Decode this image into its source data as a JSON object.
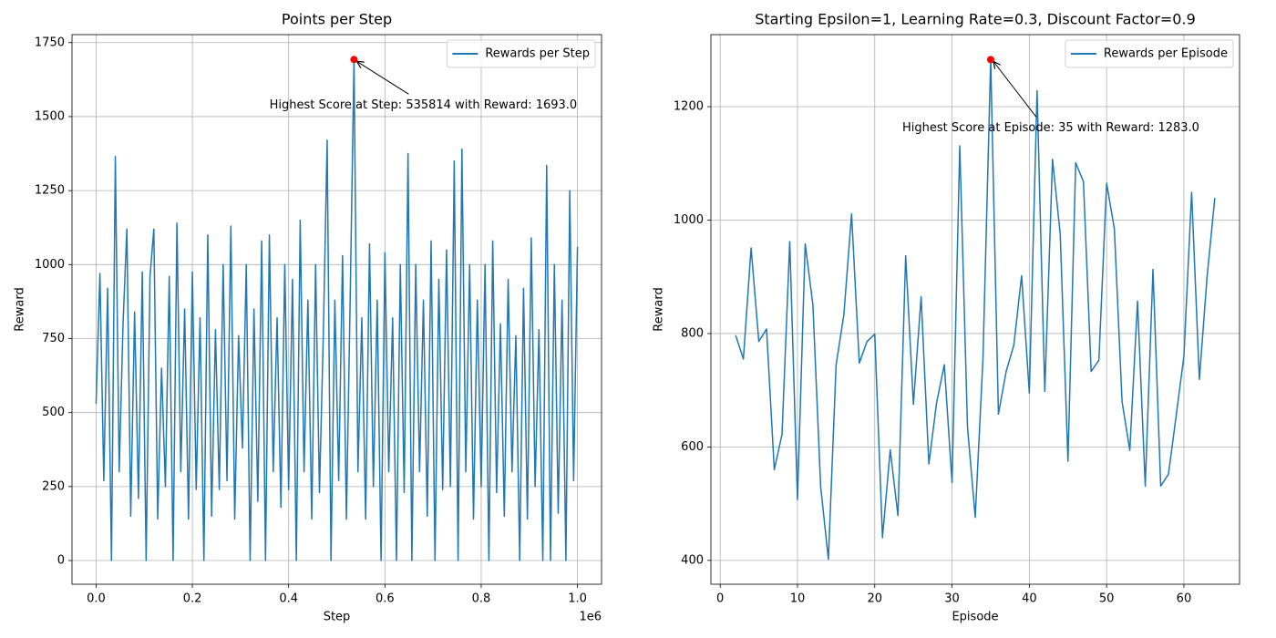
{
  "chart_data": [
    {
      "type": "line",
      "title": "Points per Step",
      "xlabel": "Step",
      "ylabel": "Reward",
      "x_offset_label": "1e6",
      "x": [
        0,
        8000,
        16000,
        24000,
        32000,
        40000,
        48000,
        56000,
        64000,
        72000,
        80000,
        88000,
        96000,
        104000,
        112000,
        120000,
        128000,
        136000,
        144000,
        152000,
        160000,
        168000,
        176000,
        184000,
        192000,
        200000,
        208000,
        216000,
        224000,
        232000,
        240000,
        248000,
        256000,
        264000,
        272000,
        280000,
        288000,
        296000,
        304000,
        312000,
        320000,
        328000,
        336000,
        344000,
        352000,
        360000,
        368000,
        376000,
        384000,
        392000,
        400000,
        408000,
        416000,
        424000,
        432000,
        440000,
        448000,
        456000,
        464000,
        472000,
        480000,
        488000,
        496000,
        504000,
        512000,
        520000,
        528000,
        535814,
        544000,
        552000,
        560000,
        568000,
        576000,
        584000,
        592000,
        600000,
        608000,
        616000,
        624000,
        632000,
        640000,
        648000,
        656000,
        664000,
        672000,
        680000,
        688000,
        696000,
        704000,
        712000,
        720000,
        728000,
        736000,
        744000,
        752000,
        760000,
        768000,
        776000,
        784000,
        792000,
        800000,
        808000,
        816000,
        824000,
        832000,
        840000,
        848000,
        856000,
        864000,
        872000,
        880000,
        888000,
        896000,
        904000,
        912000,
        920000,
        928000,
        936000,
        944000,
        952000,
        960000,
        968000,
        976000,
        984000,
        992000,
        1000000
      ],
      "series": [
        {
          "name": "Rewards per Step",
          "color": "#1f77b4",
          "values": [
            530,
            970,
            270,
            920,
            0,
            1365,
            300,
            800,
            1120,
            150,
            840,
            210,
            975,
            0,
            960,
            1120,
            140,
            650,
            250,
            960,
            0,
            1140,
            300,
            850,
            140,
            975,
            240,
            820,
            0,
            1100,
            150,
            780,
            240,
            1000,
            270,
            1130,
            140,
            760,
            380,
            1000,
            0,
            850,
            200,
            1080,
            0,
            1100,
            300,
            820,
            180,
            1000,
            240,
            950,
            0,
            1150,
            300,
            880,
            140,
            1000,
            230,
            760,
            1420,
            0,
            880,
            270,
            1030,
            140,
            900,
            1693,
            300,
            820,
            140,
            1070,
            250,
            880,
            0,
            1040,
            300,
            820,
            0,
            1000,
            230,
            1375,
            0,
            1000,
            300,
            880,
            150,
            1080,
            0,
            950,
            240,
            1050,
            250,
            1350,
            0,
            1390,
            300,
            1000,
            140,
            880,
            250,
            1000,
            0,
            1080,
            230,
            800,
            150,
            950,
            300,
            760,
            0,
            920,
            140,
            1090,
            250,
            780,
            0,
            1335,
            0,
            1000,
            160,
            880,
            0,
            1250,
            270,
            1060
          ]
        }
      ],
      "xlim": [
        -50000,
        1050000
      ],
      "ylim": [
        -80,
        1777
      ],
      "xticks": [
        {
          "value": 0,
          "label": "0.0"
        },
        {
          "value": 200000,
          "label": "0.2"
        },
        {
          "value": 400000,
          "label": "0.4"
        },
        {
          "value": 600000,
          "label": "0.6"
        },
        {
          "value": 800000,
          "label": "0.8"
        },
        {
          "value": 1000000,
          "label": "1.0"
        }
      ],
      "yticks": [
        0,
        250,
        500,
        750,
        1000,
        1250,
        1500,
        1750
      ],
      "grid": true,
      "legend": "upper right",
      "annotation": {
        "text": "Highest Score at Step: 535814 with Reward: 1693.0",
        "x": 535814,
        "y": 1693,
        "color": "#ff0000"
      }
    },
    {
      "type": "line",
      "title": "Starting Epsilon=1, Learning Rate=0.3, Discount Factor=0.9",
      "xlabel": "Episode",
      "ylabel": "Reward",
      "x": [
        2,
        3,
        4,
        5,
        6,
        7,
        8,
        9,
        10,
        11,
        12,
        13,
        14,
        15,
        16,
        17,
        18,
        19,
        20,
        21,
        22,
        23,
        24,
        25,
        26,
        27,
        28,
        29,
        30,
        31,
        32,
        33,
        34,
        35,
        36,
        37,
        38,
        39,
        40,
        41,
        42,
        43,
        44,
        45,
        46,
        47,
        48,
        49,
        50,
        51,
        52,
        53,
        54,
        55,
        56,
        57,
        58,
        59,
        60,
        61,
        62,
        63,
        64
      ],
      "series": [
        {
          "name": "Rewards per Episode",
          "color": "#1f77b4",
          "values": [
            797,
            755,
            951,
            786,
            808,
            560,
            622,
            962,
            507,
            958,
            850,
            530,
            402,
            745,
            833,
            1011,
            748,
            786,
            799,
            440,
            595,
            479,
            937,
            675,
            865,
            570,
            678,
            745,
            537,
            1131,
            635,
            476,
            755,
            1283,
            658,
            733,
            780,
            902,
            695,
            1228,
            698,
            1107,
            975,
            575,
            1101,
            1068,
            733,
            753,
            1065,
            985,
            680,
            594,
            857,
            531,
            913,
            531,
            552,
            655,
            760,
            1049,
            719,
            900,
            1039
          ]
        }
      ],
      "xlim": [
        -1.2,
        67.2
      ],
      "ylim": [
        358,
        1327
      ],
      "xticks": [
        0,
        10,
        20,
        30,
        40,
        50,
        60
      ],
      "yticks": [
        400,
        600,
        800,
        1000,
        1200
      ],
      "grid": true,
      "legend": "upper right",
      "annotation": {
        "text": "Highest Score at Episode: 35 with Reward: 1283.0",
        "x": 35,
        "y": 1283,
        "color": "#ff0000"
      }
    }
  ]
}
